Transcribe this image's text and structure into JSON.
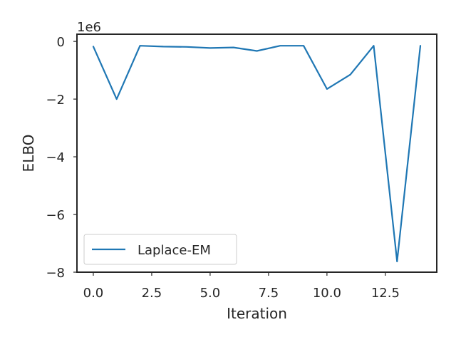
{
  "chart_data": {
    "type": "line",
    "xlabel": "Iteration",
    "ylabel": "ELBO",
    "y_offset_label": "1e6",
    "xlim": [
      -0.7,
      14.7
    ],
    "ylim": [
      -8.0,
      0.25
    ],
    "x_ticks": [
      0.0,
      2.5,
      5.0,
      7.5,
      10.0,
      12.5
    ],
    "x_tick_labels": [
      "0.0",
      "2.5",
      "5.0",
      "7.5",
      "10.0",
      "12.5"
    ],
    "y_ticks": [
      0,
      -2,
      -4,
      -6,
      -8
    ],
    "y_tick_labels": [
      "0",
      "−2",
      "−4",
      "−6",
      "−8"
    ],
    "grid": false,
    "legend_position": "lower-left",
    "series": [
      {
        "name": "Laplace-EM",
        "color": "#1f77b4",
        "x": [
          0,
          1,
          2,
          3,
          4,
          5,
          6,
          7,
          8,
          9,
          10,
          11,
          12,
          13,
          14
        ],
        "y": [
          -0.18,
          -2.0,
          -0.15,
          -0.18,
          -0.19,
          -0.23,
          -0.21,
          -0.33,
          -0.15,
          -0.15,
          -1.65,
          -1.15,
          -0.15,
          -7.63,
          -0.15
        ]
      }
    ]
  }
}
